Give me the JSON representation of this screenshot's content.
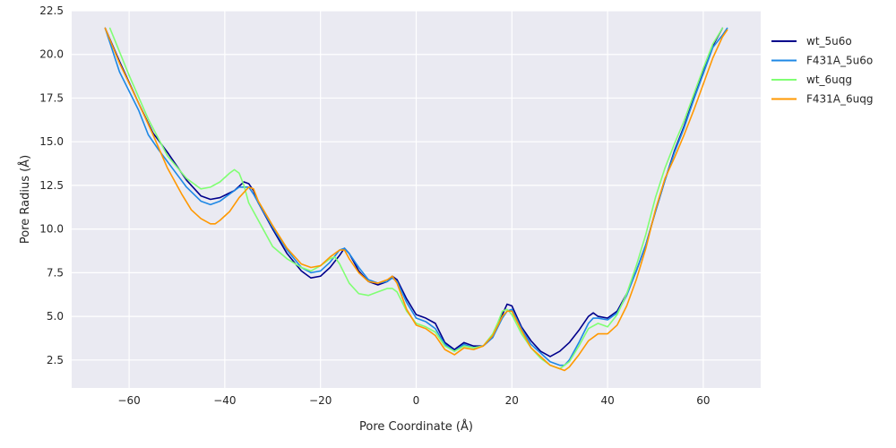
{
  "chart_data": {
    "type": "line",
    "title": "",
    "xlabel": "Pore Coordinate (Å)",
    "ylabel": "Pore Radius (Å)",
    "xlim": [
      -72,
      72
    ],
    "ylim": [
      0.9,
      22.5
    ],
    "xticks": [
      -60,
      -40,
      -20,
      0,
      20,
      40,
      60
    ],
    "yticks": [
      2.5,
      5.0,
      7.5,
      10.0,
      12.5,
      15.0,
      17.5,
      20.0,
      22.5
    ],
    "grid": true,
    "legend_position": "top-right-outside",
    "series": [
      {
        "name": "wt_5u6o",
        "color": "#00008b",
        "x": [
          -65,
          -62,
          -58,
          -55,
          -52,
          -48,
          -45,
          -43,
          -41,
          -38,
          -36,
          -35,
          -34,
          -33,
          -30,
          -27,
          -24,
          -22,
          -20,
          -18,
          -16,
          -15,
          -14,
          -12,
          -10,
          -8,
          -6,
          -5,
          -4,
          -2,
          0,
          2,
          4,
          6,
          8,
          10,
          12,
          14,
          16,
          18,
          19,
          20,
          22,
          24,
          26,
          28,
          30,
          32,
          34,
          36,
          37,
          38,
          40,
          42,
          44,
          46,
          48,
          50,
          52,
          54,
          56,
          58,
          60,
          62,
          64
        ],
        "y": [
          21.5,
          19.6,
          17.2,
          15.5,
          14.4,
          12.8,
          11.9,
          11.7,
          11.8,
          12.2,
          12.7,
          12.6,
          12.2,
          11.5,
          10.0,
          8.6,
          7.6,
          7.2,
          7.3,
          7.8,
          8.5,
          8.9,
          8.6,
          7.6,
          7.0,
          6.8,
          7.0,
          7.3,
          7.1,
          6.0,
          5.1,
          4.9,
          4.6,
          3.5,
          3.1,
          3.5,
          3.3,
          3.3,
          3.8,
          5.1,
          5.7,
          5.6,
          4.4,
          3.6,
          3.0,
          2.7,
          3.0,
          3.5,
          4.2,
          5.0,
          5.2,
          5.0,
          4.9,
          5.3,
          6.3,
          7.6,
          9.1,
          11.0,
          12.8,
          14.5,
          15.9,
          17.5,
          19.0,
          20.5,
          21.5
        ]
      },
      {
        "name": "F431A_5u6o",
        "color": "#1e88e5",
        "x": [
          -65,
          -62,
          -58,
          -56,
          -54,
          -51,
          -48,
          -45,
          -43,
          -41,
          -39,
          -37,
          -35,
          -34,
          -33,
          -30,
          -27,
          -24,
          -22,
          -20,
          -18,
          -16,
          -15,
          -14,
          -12,
          -10,
          -8,
          -6,
          -5,
          -4,
          -2,
          0,
          2,
          4,
          6,
          8,
          10,
          12,
          14,
          16,
          18,
          19,
          20,
          22,
          24,
          26,
          28,
          30,
          31,
          32,
          34,
          36,
          37,
          38,
          40,
          42,
          44,
          46,
          48,
          50,
          52,
          54,
          56,
          58,
          60,
          62,
          64,
          65
        ],
        "y": [
          21.5,
          19.0,
          16.8,
          15.4,
          14.6,
          13.5,
          12.4,
          11.6,
          11.4,
          11.6,
          12.0,
          12.4,
          12.4,
          12.0,
          11.5,
          10.1,
          8.8,
          7.8,
          7.5,
          7.6,
          8.1,
          8.8,
          8.9,
          8.6,
          7.8,
          7.1,
          6.9,
          7.0,
          7.2,
          7.0,
          5.8,
          4.9,
          4.7,
          4.3,
          3.4,
          3.0,
          3.4,
          3.2,
          3.3,
          3.8,
          4.9,
          5.3,
          5.4,
          4.3,
          3.4,
          2.9,
          2.4,
          2.2,
          2.2,
          2.5,
          3.5,
          4.6,
          4.9,
          4.9,
          4.8,
          5.2,
          6.2,
          7.6,
          9.1,
          11.0,
          12.8,
          14.4,
          15.8,
          17.4,
          18.9,
          20.4,
          21.1,
          21.5
        ]
      },
      {
        "name": "wt_6uqg",
        "color": "#80ff73",
        "x": [
          -64,
          -60,
          -56,
          -52,
          -48,
          -45,
          -43,
          -41,
          -39,
          -38,
          -37,
          -36,
          -35,
          -33,
          -30,
          -27,
          -24,
          -22,
          -20,
          -18,
          -17,
          -16,
          -14,
          -12,
          -10,
          -8,
          -6,
          -5,
          -4,
          -2,
          0,
          2,
          4,
          6,
          8,
          10,
          12,
          14,
          16,
          17,
          18,
          19,
          20,
          22,
          24,
          26,
          28,
          30,
          32,
          34,
          36,
          38,
          40,
          42,
          44,
          46,
          48,
          50,
          52,
          54,
          56,
          58,
          60,
          62,
          64
        ],
        "y": [
          21.5,
          18.8,
          16.3,
          14.2,
          12.9,
          12.3,
          12.4,
          12.7,
          13.2,
          13.4,
          13.2,
          12.5,
          11.5,
          10.5,
          9.0,
          8.3,
          7.8,
          7.6,
          7.9,
          8.3,
          8.4,
          8.0,
          6.9,
          6.3,
          6.2,
          6.4,
          6.6,
          6.6,
          6.4,
          5.3,
          4.6,
          4.4,
          4.1,
          3.3,
          3.0,
          3.3,
          3.2,
          3.3,
          4.0,
          4.6,
          5.3,
          5.4,
          5.1,
          4.0,
          3.2,
          2.6,
          2.2,
          2.0,
          2.4,
          3.3,
          4.3,
          4.6,
          4.4,
          5.1,
          6.3,
          7.9,
          9.7,
          11.8,
          13.5,
          14.9,
          16.2,
          17.7,
          19.2,
          20.6,
          21.5
        ]
      },
      {
        "name": "F431A_6uqg",
        "color": "#ff9800",
        "x": [
          -65,
          -62,
          -58,
          -55,
          -52,
          -49,
          -47,
          -45,
          -43,
          -42,
          -41,
          -39,
          -37,
          -35,
          -34,
          -33,
          -30,
          -27,
          -24,
          -22,
          -20,
          -18,
          -16,
          -15,
          -14,
          -12,
          -10,
          -8,
          -6,
          -5,
          -4,
          -2,
          0,
          2,
          4,
          6,
          8,
          10,
          12,
          14,
          16,
          18,
          19,
          20,
          22,
          24,
          26,
          28,
          30,
          31,
          32,
          34,
          36,
          38,
          40,
          42,
          44,
          46,
          48,
          50,
          52,
          54,
          56,
          58,
          60,
          62,
          64,
          65
        ],
        "y": [
          21.5,
          19.5,
          17.2,
          15.4,
          13.5,
          12.0,
          11.1,
          10.6,
          10.3,
          10.3,
          10.5,
          11.0,
          11.8,
          12.4,
          12.3,
          11.6,
          10.2,
          8.9,
          8.0,
          7.8,
          7.9,
          8.4,
          8.8,
          8.8,
          8.3,
          7.5,
          7.0,
          6.9,
          7.1,
          7.3,
          6.9,
          5.4,
          4.5,
          4.3,
          3.9,
          3.1,
          2.8,
          3.2,
          3.1,
          3.3,
          3.9,
          5.0,
          5.3,
          5.3,
          4.2,
          3.2,
          2.7,
          2.2,
          2.0,
          1.9,
          2.1,
          2.8,
          3.6,
          4.0,
          4.0,
          4.5,
          5.6,
          7.1,
          8.9,
          11.1,
          12.9,
          14.1,
          15.4,
          16.8,
          18.3,
          19.8,
          21.0,
          21.4
        ]
      }
    ]
  }
}
